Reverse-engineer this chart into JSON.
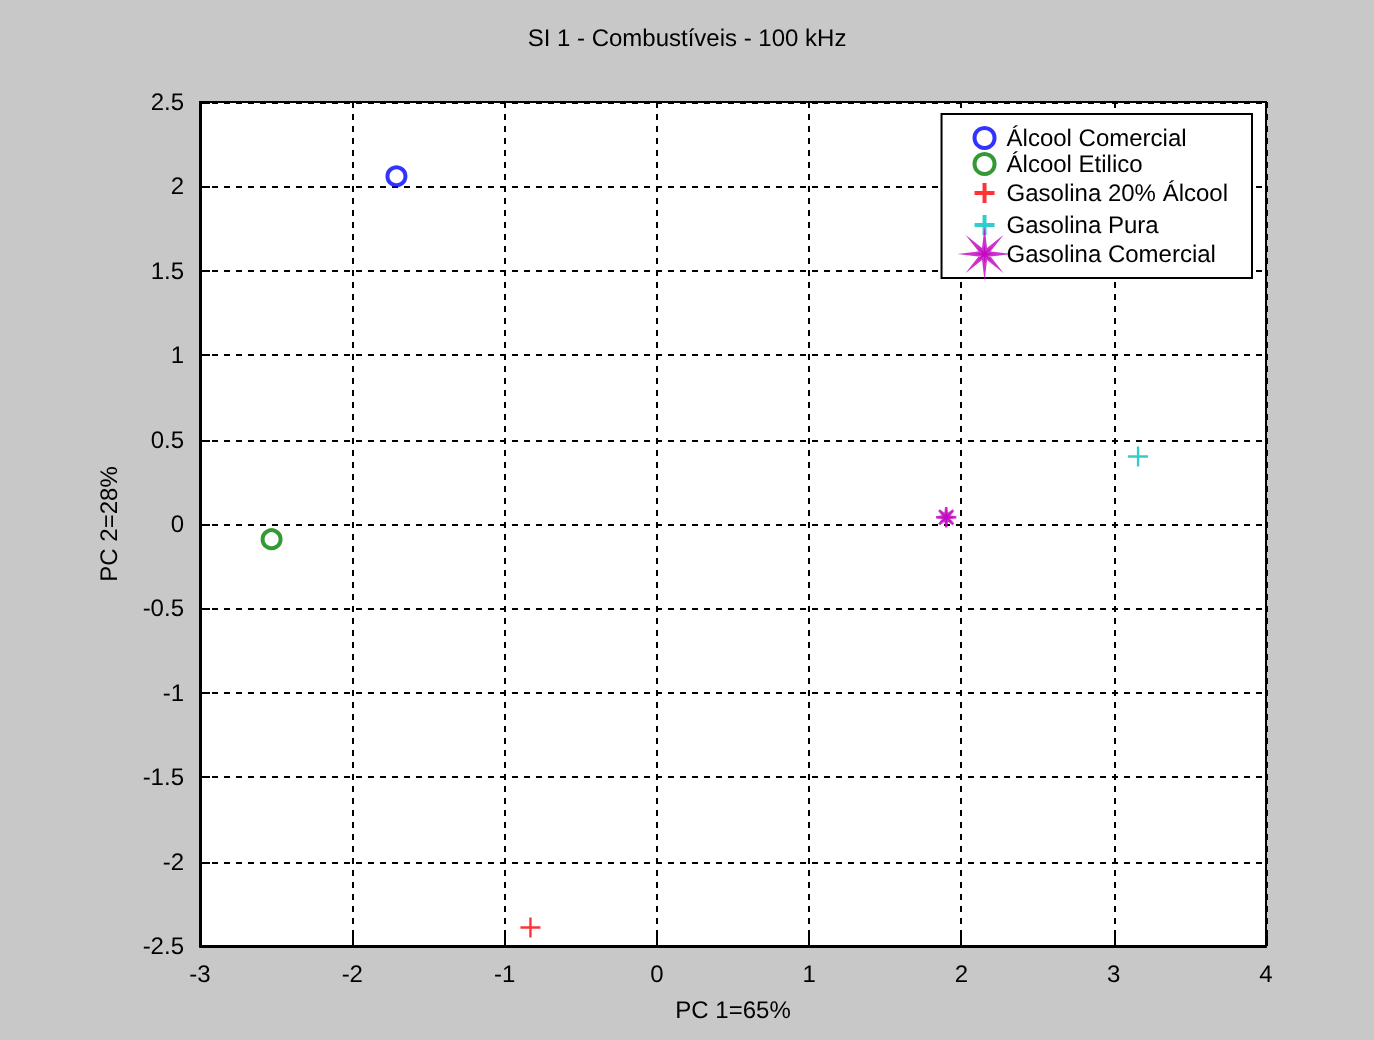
{
  "chart_data": {
    "type": "scatter",
    "title": "SI 1 - Combustíveis - 100 kHz",
    "xlabel": "PC 1=65%",
    "ylabel": "PC 2=28%",
    "series": [
      {
        "name": "Álcool Comercial",
        "color": "#0000ff",
        "marker": "circle",
        "x": [
          -1.71
        ],
        "values": [
          2.06
        ]
      },
      {
        "name": "Álcool Etilico",
        "color": "#008000",
        "marker": "circle",
        "x": [
          -2.53
        ],
        "values": [
          -0.09
        ]
      },
      {
        "name": "Gasolina 20% Álcool",
        "color": "#ff0000",
        "marker": "cross",
        "x": [
          -0.83
        ],
        "values": [
          -2.39
        ]
      },
      {
        "name": "Gasolina Pura",
        "color": "#00bfbf",
        "marker": "cross",
        "x": [
          3.16
        ],
        "values": [
          0.4
        ]
      },
      {
        "name": "Gasolina Comercial",
        "color": "#bf00bf",
        "marker": "star",
        "x": [
          1.9
        ],
        "values": [
          0.04
        ]
      }
    ],
    "xlim": [
      -3,
      4
    ],
    "xticks": [
      -3,
      -2,
      -1,
      0,
      1,
      2,
      3,
      4
    ],
    "ylim": [
      -2.5,
      2.5
    ],
    "yticks": [
      -2.5,
      -2,
      -1.5,
      -1,
      -0.5,
      0,
      0.5,
      1,
      1.5,
      2,
      2.5
    ],
    "grid": true,
    "legend": "top right"
  }
}
